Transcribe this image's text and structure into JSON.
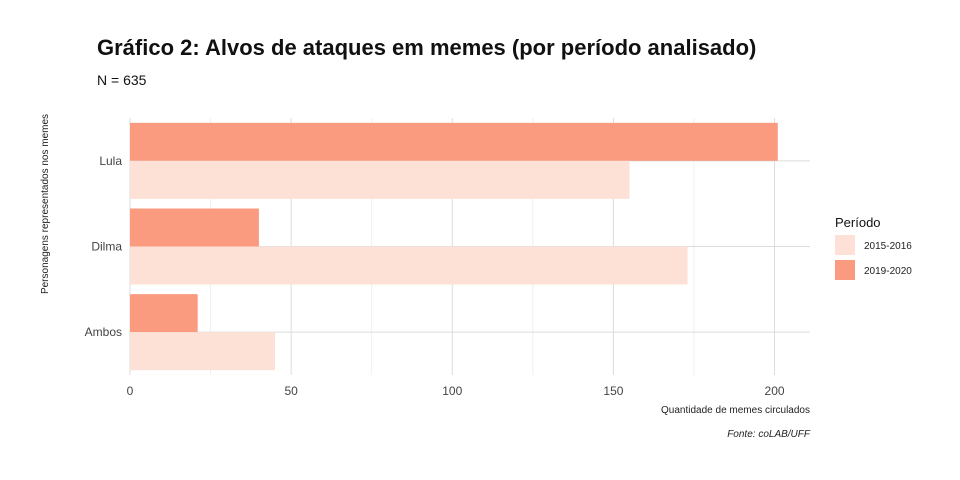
{
  "chart_data": {
    "type": "bar",
    "orientation": "horizontal",
    "title": "Gráfico 2: Alvos de ataques em memes (por período analisado)",
    "subtitle": "N = 635",
    "xlabel": "Quantidade de memes circulados",
    "ylabel": "Personagens representados nos memes",
    "caption": "Fonte: coLAB/UFF",
    "categories": [
      "Lula",
      "Dilma",
      "Ambos"
    ],
    "series": [
      {
        "name": "2015-2016",
        "values": [
          155,
          173,
          45
        ],
        "color": "#fde0d6"
      },
      {
        "name": "2019-2020",
        "values": [
          201,
          40,
          21
        ],
        "color": "#fa9a7f"
      }
    ],
    "xlim": [
      0,
      211
    ],
    "xticks": [
      0,
      50,
      100,
      150,
      200
    ],
    "grid": true,
    "legend": {
      "title": "Período",
      "position": "right"
    }
  }
}
